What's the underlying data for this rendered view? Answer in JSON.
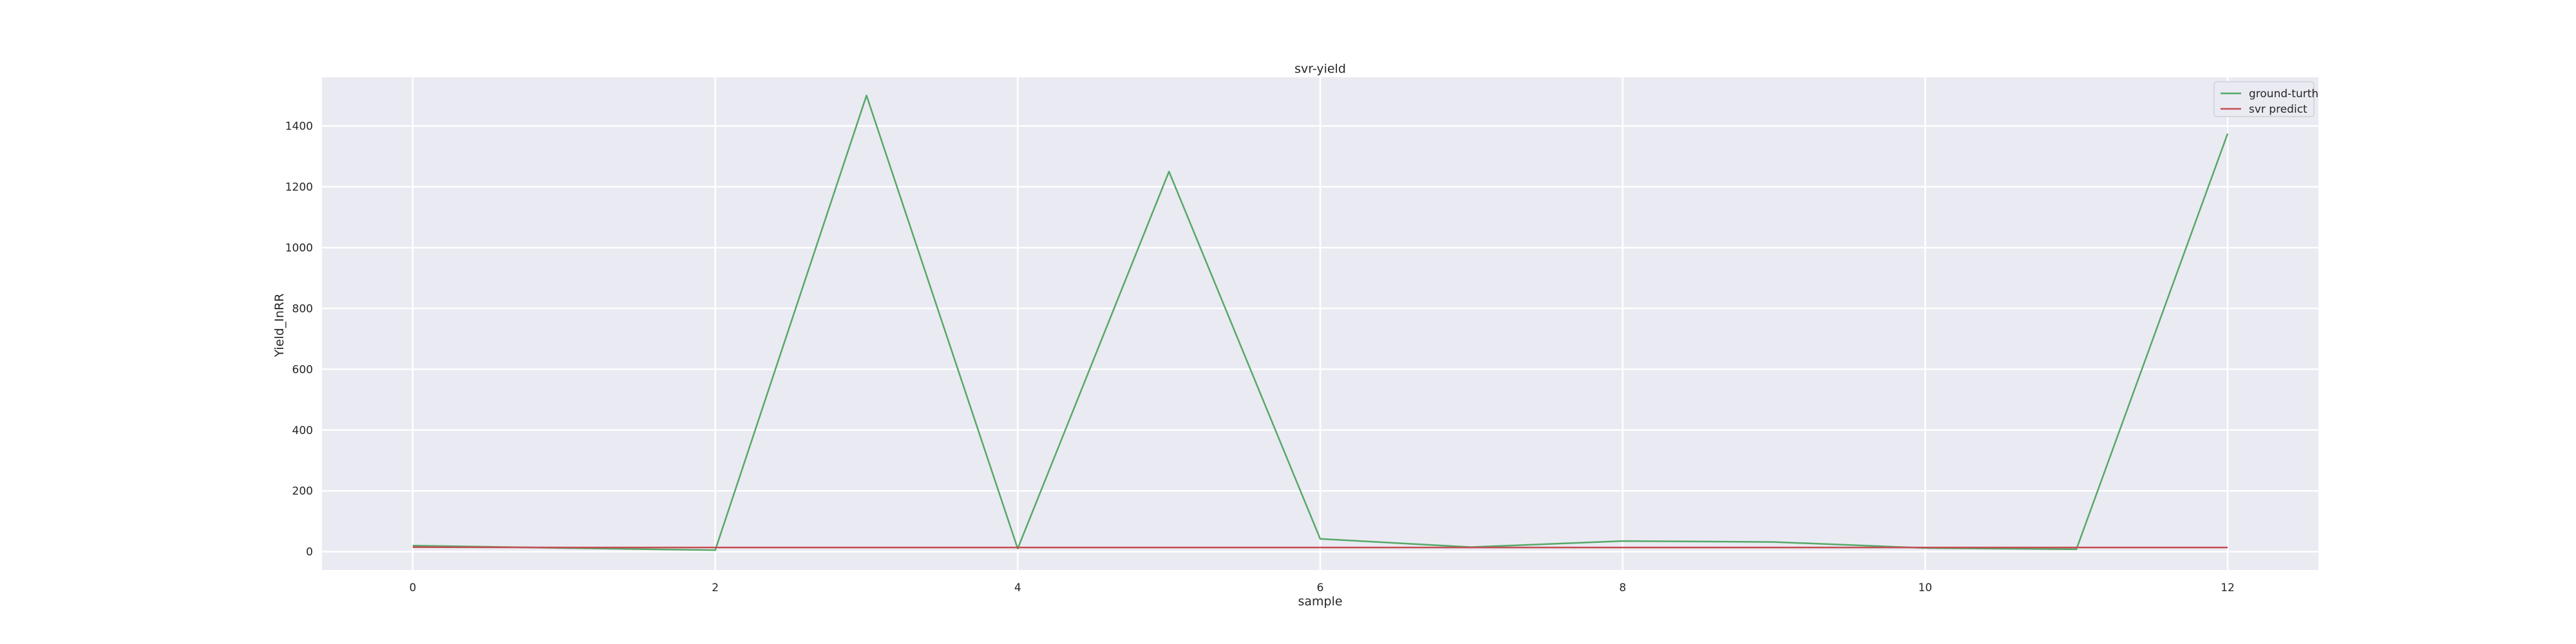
{
  "chart_data": {
    "type": "line",
    "title": "svr-yield",
    "xlabel": "sample",
    "ylabel": "Yield_InRR",
    "x": [
      0,
      1,
      2,
      3,
      4,
      5,
      6,
      7,
      8,
      9,
      10,
      11,
      12
    ],
    "xlim": [
      -0.6,
      12.6
    ],
    "ylim": [
      -60,
      1560
    ],
    "xticks": [
      0,
      2,
      4,
      6,
      8,
      10,
      12
    ],
    "yticks": [
      0,
      200,
      400,
      600,
      800,
      1000,
      1200,
      1400
    ],
    "grid": true,
    "legend_position": "top-right",
    "series": [
      {
        "name": "ground-turth",
        "color": "#55a868",
        "values": [
          20,
          12,
          5,
          1500,
          10,
          1250,
          42,
          15,
          35,
          32,
          12,
          8,
          1375
        ]
      },
      {
        "name": "svr predict",
        "color": "#c44e52",
        "values": [
          15,
          14,
          14,
          14,
          14,
          14,
          14,
          14,
          14,
          14,
          14,
          14,
          14
        ]
      }
    ]
  }
}
